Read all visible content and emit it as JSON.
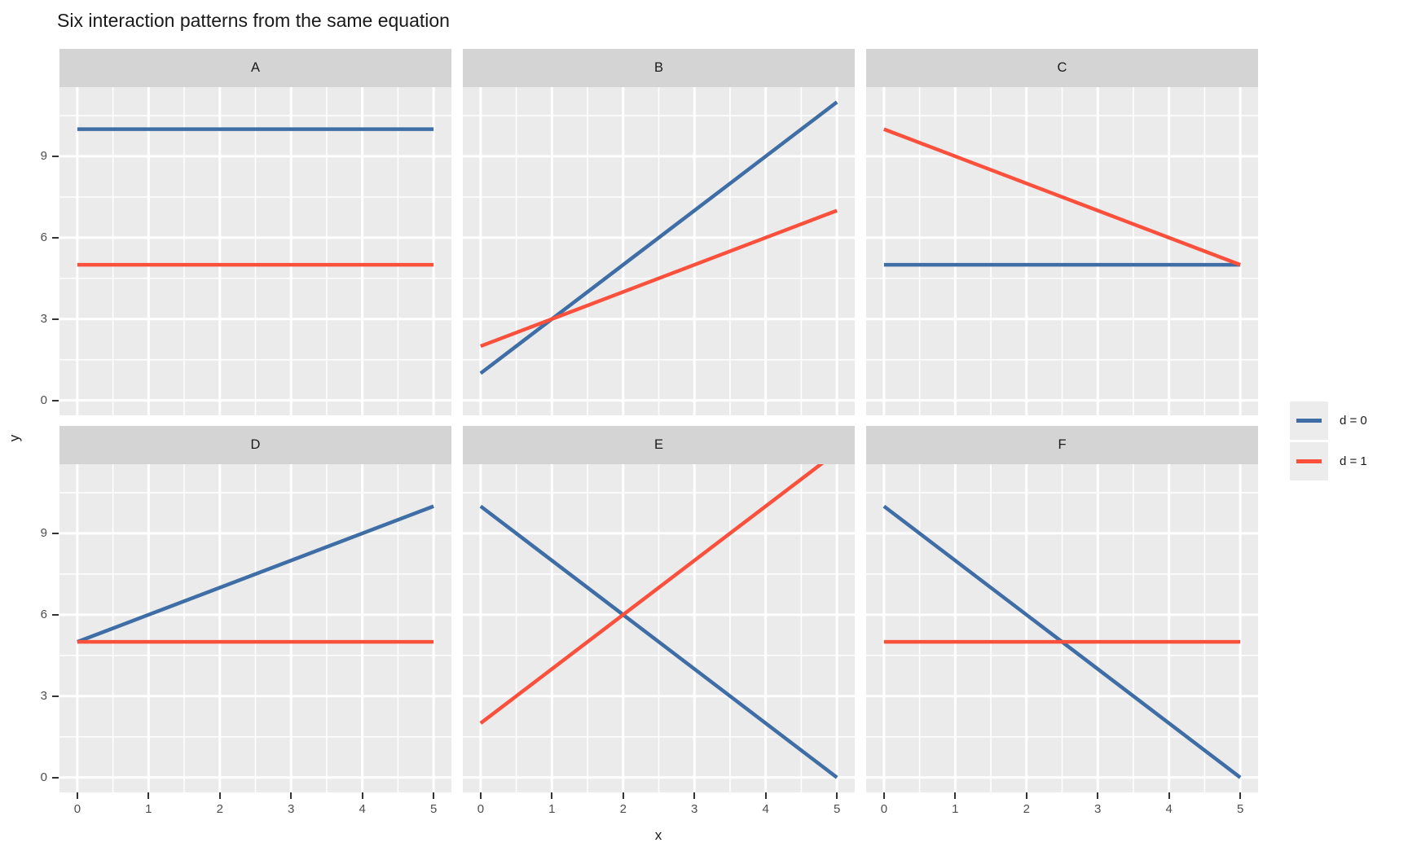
{
  "title": "Six interaction patterns from the same equation",
  "axes": {
    "x_label": "x",
    "y_label": "y"
  },
  "legend": {
    "items": [
      {
        "label": "d = 0",
        "color": "#3E6EA5"
      },
      {
        "label": "d = 1",
        "color": "#FA503C"
      }
    ]
  },
  "colors": {
    "panel_bg": "#EBEBEB",
    "strip_bg": "#D4D4D4",
    "grid": "#FFFFFF",
    "axis_text": "#4D4D4D",
    "tick_mark": "#333333",
    "legend_key_bg": "#ECECEC"
  },
  "chart_data": {
    "type": "line",
    "title": "Six interaction patterns from the same equation",
    "xlabel": "x",
    "ylabel": "y",
    "x_ticks": [
      0,
      1,
      2,
      3,
      4,
      5
    ],
    "y_ticks": [
      0,
      3,
      6,
      9
    ],
    "xlim": [
      -0.25,
      5.25
    ],
    "ylim": [
      -0.55,
      11.55
    ],
    "grid": "major-and-minor-white-on-gray",
    "legend_position": "right",
    "facets": [
      {
        "label": "A",
        "series": [
          {
            "group": "d = 0",
            "x": [
              0,
              5
            ],
            "y": [
              10,
              10
            ]
          },
          {
            "group": "d = 1",
            "x": [
              0,
              5
            ],
            "y": [
              5,
              5
            ]
          }
        ]
      },
      {
        "label": "B",
        "series": [
          {
            "group": "d = 0",
            "x": [
              0,
              5
            ],
            "y": [
              1,
              11
            ]
          },
          {
            "group": "d = 1",
            "x": [
              0,
              5
            ],
            "y": [
              2,
              7
            ]
          }
        ]
      },
      {
        "label": "C",
        "series": [
          {
            "group": "d = 0",
            "x": [
              0,
              5
            ],
            "y": [
              5,
              5
            ]
          },
          {
            "group": "d = 1",
            "x": [
              0,
              5
            ],
            "y": [
              10,
              5
            ]
          }
        ]
      },
      {
        "label": "D",
        "series": [
          {
            "group": "d = 0",
            "x": [
              0,
              5
            ],
            "y": [
              5,
              10
            ]
          },
          {
            "group": "d = 1",
            "x": [
              0,
              5
            ],
            "y": [
              5,
              5
            ]
          }
        ]
      },
      {
        "label": "E",
        "series": [
          {
            "group": "d = 0",
            "x": [
              0,
              5
            ],
            "y": [
              10,
              0
            ]
          },
          {
            "group": "d = 1",
            "x": [
              0,
              5
            ],
            "y": [
              2,
              12
            ]
          }
        ]
      },
      {
        "label": "F",
        "series": [
          {
            "group": "d = 0",
            "x": [
              0,
              5
            ],
            "y": [
              10,
              0
            ]
          },
          {
            "group": "d = 1",
            "x": [
              0,
              5
            ],
            "y": [
              5,
              5
            ]
          }
        ]
      }
    ]
  }
}
